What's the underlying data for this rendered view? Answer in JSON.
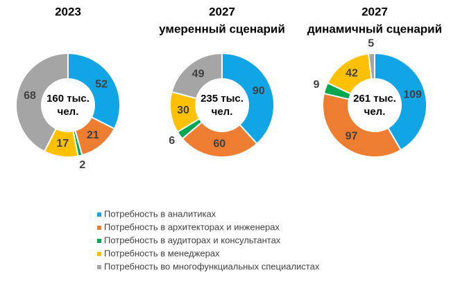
{
  "legend": {
    "labels": [
      "Потребность в аналитиках",
      "Потребность в архитекторах и инженерах",
      "Потребность в аудиторах и консультантах",
      "Потребность в менеджерах",
      "Потребность во многофункциальных специалистах"
    ],
    "colors": [
      "#12a5e6",
      "#ed7d31",
      "#00a650",
      "#ffc000",
      "#a5a5a5"
    ]
  },
  "chart_data": [
    {
      "type": "donut",
      "title": "2023",
      "center_label": [
        "160 тыс.",
        "чел."
      ],
      "values": [
        52,
        21,
        2,
        17,
        68
      ]
    },
    {
      "type": "donut",
      "title": "2027",
      "subtitle": "умеренный сценарий",
      "center_label": [
        "235 тыс.",
        "чел."
      ],
      "values": [
        90,
        60,
        6,
        30,
        49
      ]
    },
    {
      "type": "donut",
      "title": "2027",
      "subtitle": "динамичный сценарий",
      "center_label": [
        "261 тыс.",
        "чел."
      ],
      "values": [
        109,
        97,
        9,
        42,
        5
      ]
    }
  ]
}
